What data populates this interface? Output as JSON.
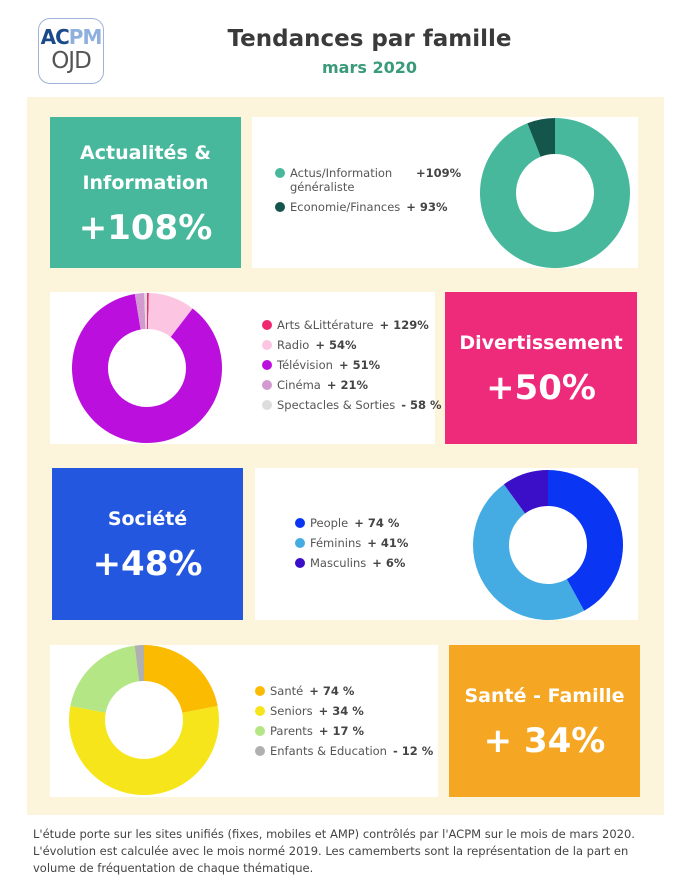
{
  "header": {
    "logo_top": "ACPM",
    "logo_bottom": "OJD",
    "title": "Tendances par famille",
    "subtitle": "mars 2020"
  },
  "families": [
    {
      "name_lines": [
        "Actualités &",
        "Information"
      ],
      "value": "+108%",
      "color": "#47b89c"
    },
    {
      "name_lines": [
        "Divertissement"
      ],
      "value": "+50%",
      "color": "#ee2a7b"
    },
    {
      "name_lines": [
        "Société"
      ],
      "value": "+48%",
      "color": "#2457e0"
    },
    {
      "name_lines": [
        "Santé - Famille"
      ],
      "value": "+ 34%",
      "color": "#f5a623"
    }
  ],
  "chart_data": [
    {
      "type": "pie",
      "donut": true,
      "categories": [
        "Actus/Information généraliste",
        "Economie/Finances"
      ],
      "values": [
        94,
        6
      ],
      "colors": [
        "#47b89c",
        "#14564b"
      ],
      "legend_values": [
        "+109%",
        "+ 93%"
      ]
    },
    {
      "type": "pie",
      "donut": true,
      "categories": [
        "Arts &Littérature",
        "Radio",
        "Télévision",
        "Cinéma",
        "Spectacles & Sorties"
      ],
      "values": [
        0.4,
        10,
        87,
        2,
        0.6
      ],
      "colors": [
        "#f0266f",
        "#fcc6e3",
        "#bb0fdd",
        "#d29ad0",
        "#dddddd"
      ],
      "legend_values": [
        "+ 129%",
        "+ 54%",
        "+ 51%",
        "+ 21%",
        "- 58 %"
      ]
    },
    {
      "type": "pie",
      "donut": true,
      "categories": [
        "People",
        "Féminins",
        "Masculins"
      ],
      "values": [
        42,
        48,
        10
      ],
      "colors": [
        "#0a35f2",
        "#45ace3",
        "#3b0fc8"
      ],
      "legend_values": [
        "+ 74 %",
        "+ 41%",
        "+ 6%"
      ]
    },
    {
      "type": "pie",
      "donut": true,
      "categories": [
        "Santé",
        "Seniors",
        "Parents",
        "Enfants & Education"
      ],
      "values": [
        22,
        56,
        20,
        2
      ],
      "colors": [
        "#fbbb00",
        "#f7e51c",
        "#b5e685",
        "#b0b0b0"
      ],
      "legend_values": [
        "+ 74 %",
        "+ 34 %",
        "+ 17 %",
        "- 12 %"
      ]
    }
  ],
  "footnote": "L'étude porte sur les sites unifiés (fixes, mobiles et AMP) contrôlés par l'ACPM sur le mois de mars 2020. L'évolution est calculée avec le mois normé 2019. Les camemberts sont la représentation de la part en volume de fréquentation de chaque thématique."
}
